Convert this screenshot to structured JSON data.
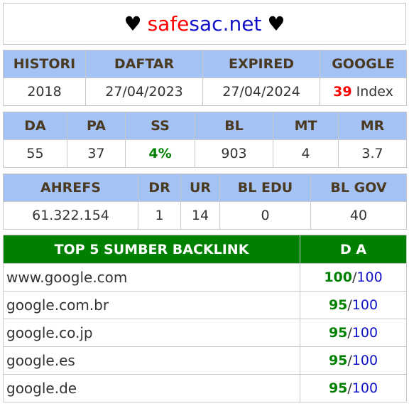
{
  "title": {
    "heart": "♥",
    "part1": "safe",
    "part2": "sac.net"
  },
  "table1": {
    "headers": [
      "HISTORI",
      "DAFTAR",
      "EXPIRED",
      "GOOGLE"
    ],
    "values": {
      "histori": "2018",
      "daftar": "27/04/2023",
      "expired": "27/04/2024",
      "google_count": "39",
      "google_suffix": "Index"
    }
  },
  "table2": {
    "headers": [
      "DA",
      "PA",
      "SS",
      "BL",
      "MT",
      "MR"
    ],
    "values": [
      "55",
      "37",
      "4%",
      "903",
      "4",
      "3.7"
    ]
  },
  "table3": {
    "headers": [
      "AHREFS",
      "DR",
      "UR",
      "BL EDU",
      "BL GOV"
    ],
    "values": [
      "61.322.154",
      "1",
      "14",
      "0",
      "40"
    ]
  },
  "backlinks": {
    "headers": [
      "TOP 5 SUMBER BACKLINK",
      "D A"
    ],
    "rows": [
      {
        "site": "www.google.com",
        "da": "100",
        "max": "100"
      },
      {
        "site": "google.com.br",
        "da": "95",
        "max": "100"
      },
      {
        "site": "google.co.jp",
        "da": "95",
        "max": "100"
      },
      {
        "site": "google.es",
        "da": "95",
        "max": "100"
      },
      {
        "site": "google.de",
        "da": "95",
        "max": "100"
      }
    ]
  },
  "colors": {
    "header_bg": "#a4c2f4",
    "backlink_header_bg": "#008000",
    "red": "#ff0000",
    "green": "#008000",
    "blue": "#1010c8"
  }
}
